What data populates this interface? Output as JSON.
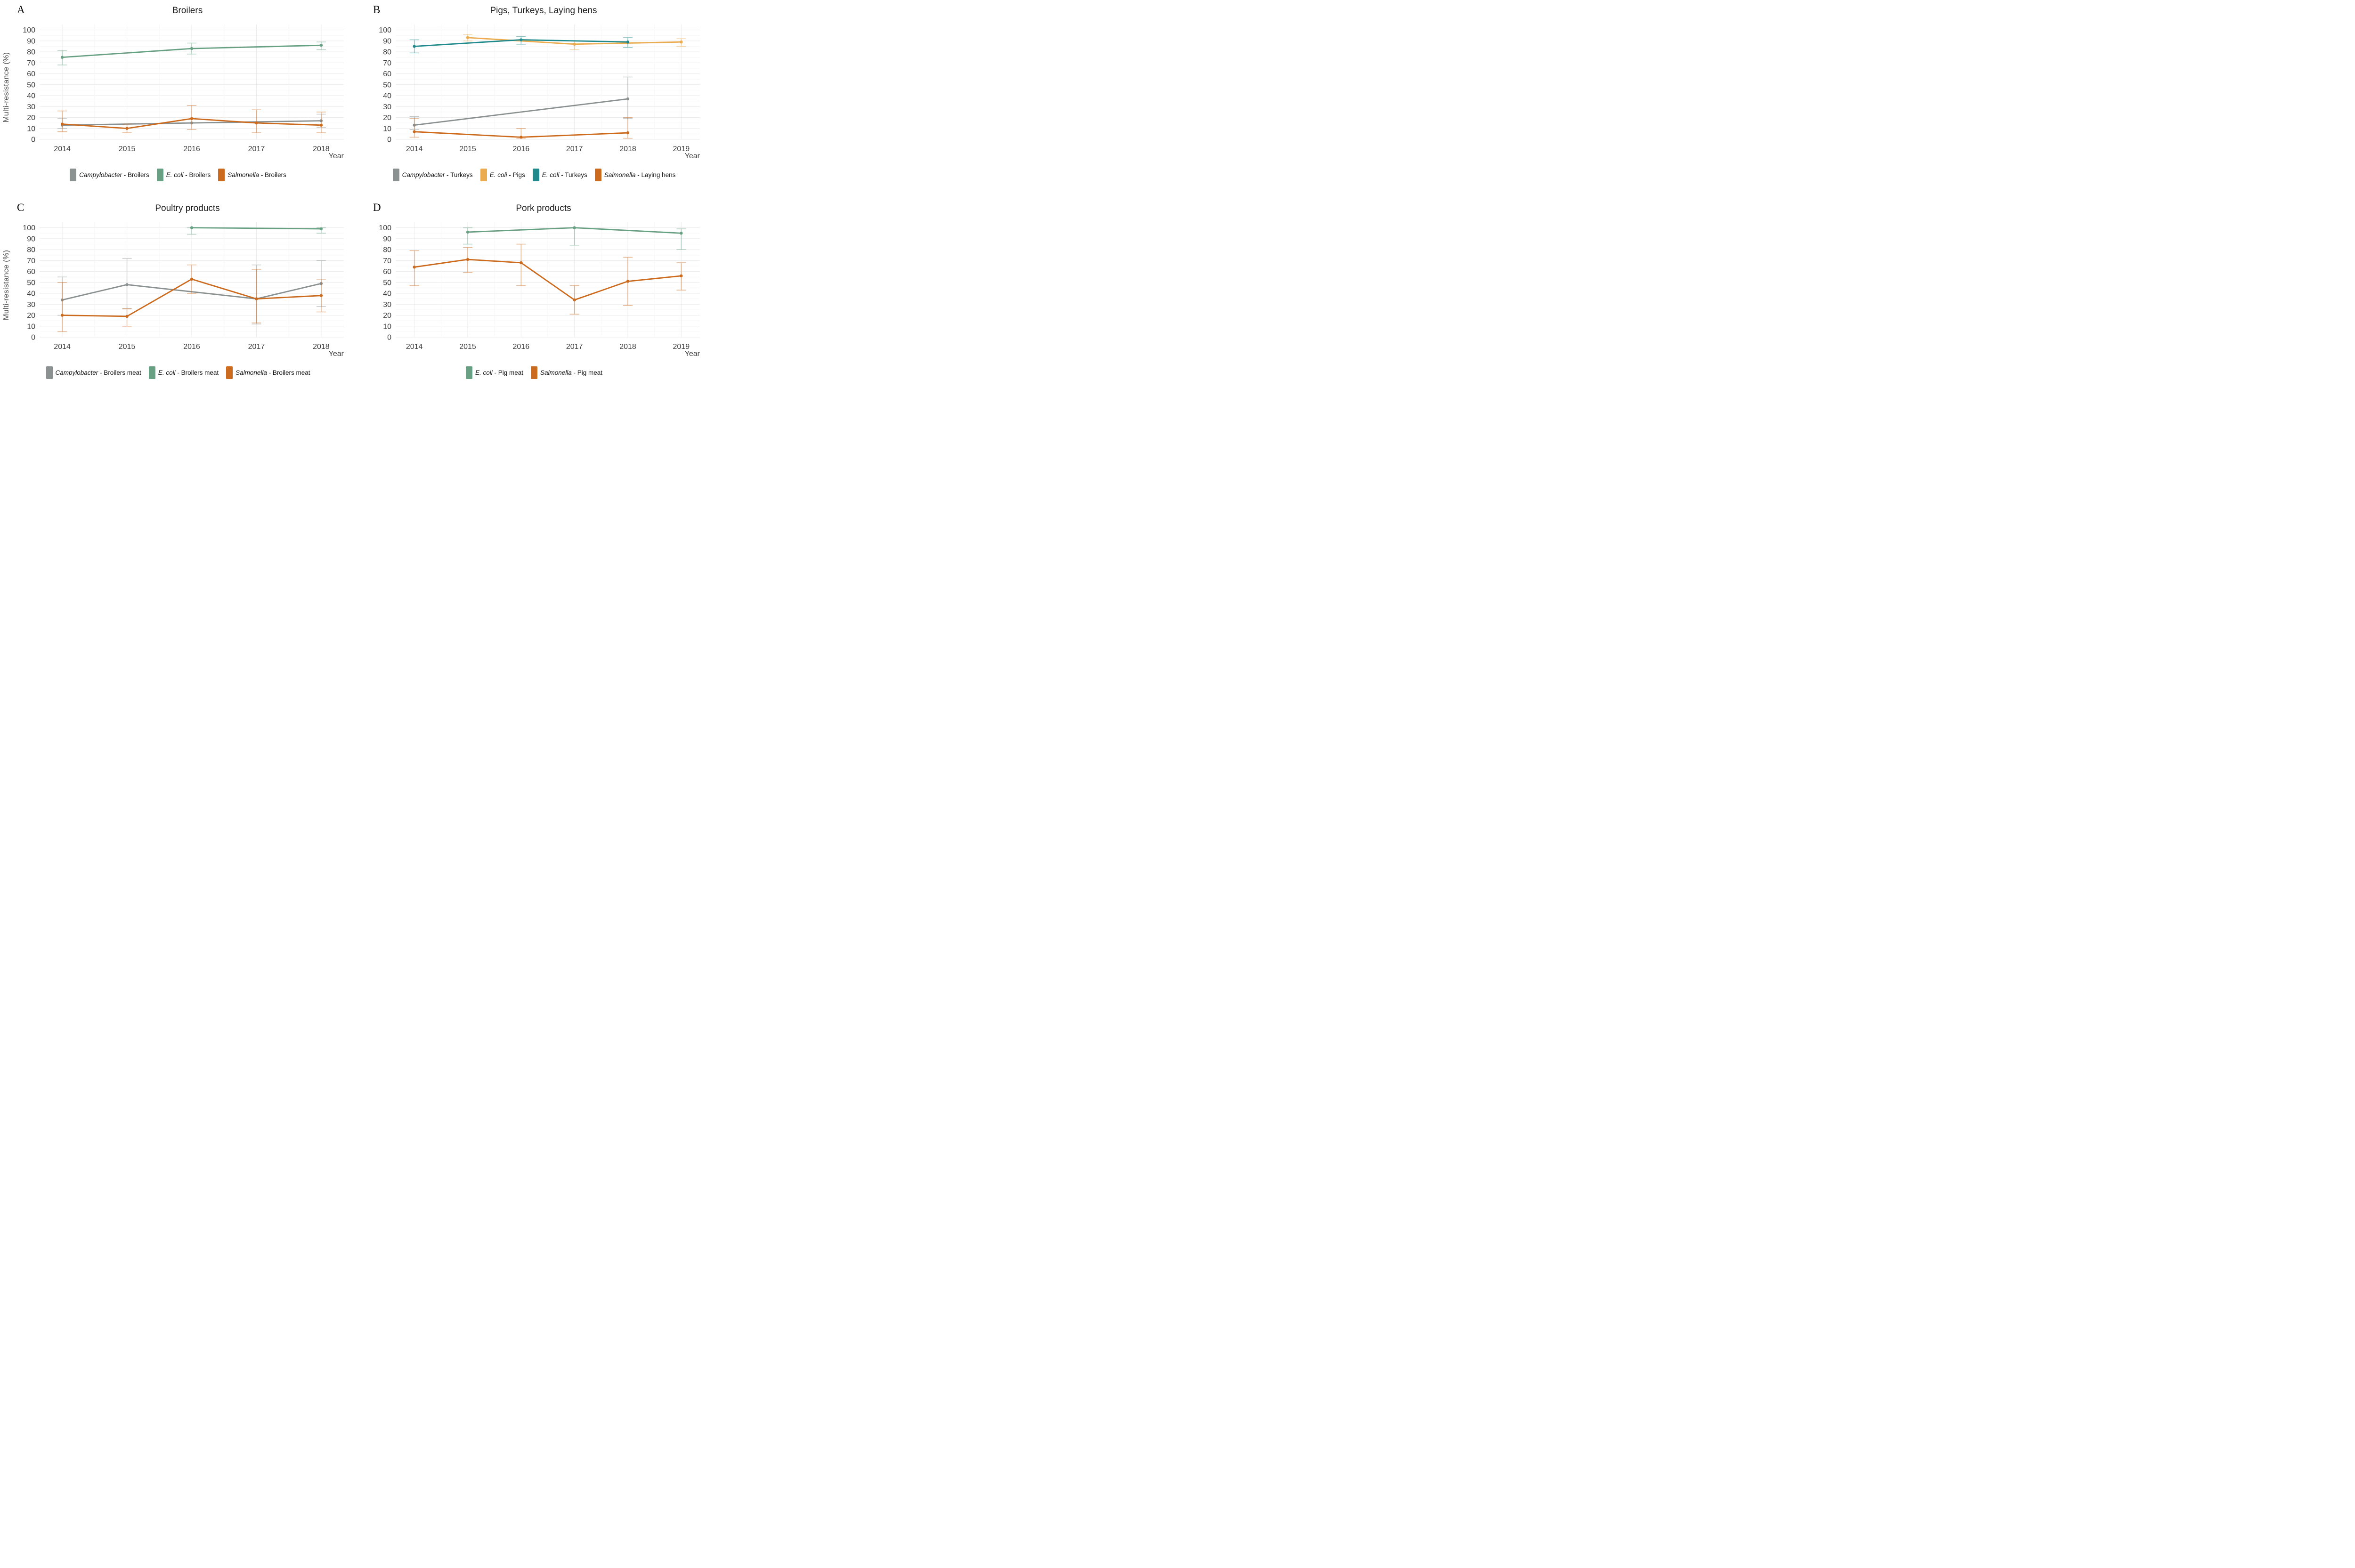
{
  "figure": {
    "y_axis_title": "Multi-resistance (%)",
    "x_axis_title": "Year"
  },
  "chart_data": [
    {
      "panel": "A",
      "type": "line",
      "title": "Broilers",
      "xlabel": "Year",
      "ylabel": "Multi-resistance (%)",
      "ylim": [
        0,
        105
      ],
      "y_ticks": [
        0,
        10,
        20,
        30,
        40,
        50,
        60,
        70,
        80,
        90,
        100
      ],
      "x_ticks": [
        2014,
        2015,
        2016,
        2017,
        2018
      ],
      "grid": true,
      "legend_position": "bottom",
      "series": [
        {
          "genus": "Campylobacter",
          "rest": " - Broilers",
          "label": "Campylobacter - Broilers",
          "color": "#8A9190",
          "points": [
            {
              "x": 2014,
              "y": 13,
              "lo": 10,
              "hi": 19
            },
            {
              "x": 2016,
              "y": 15,
              "lo": null,
              "hi": null
            },
            {
              "x": 2018,
              "y": 17,
              "lo": 11,
              "hi": 23
            }
          ]
        },
        {
          "genus": "E. coli",
          "rest": " - Broilers",
          "label": "E. coli - Broilers",
          "color": "#67A083",
          "points": [
            {
              "x": 2014,
              "y": 75,
              "lo": 68,
              "hi": 81
            },
            {
              "x": 2016,
              "y": 83,
              "lo": 78,
              "hi": 88
            },
            {
              "x": 2018,
              "y": 86,
              "lo": 82,
              "hi": 89
            }
          ]
        },
        {
          "genus": "Salmonella",
          "rest": " - Broilers",
          "label": "Salmonella - Broilers",
          "color": "#CC6A1E",
          "points": [
            {
              "x": 2014,
              "y": 14,
              "lo": 7,
              "hi": 26
            },
            {
              "x": 2015,
              "y": 10,
              "lo": 6,
              "hi": 14
            },
            {
              "x": 2016,
              "y": 19,
              "lo": 9,
              "hi": 31
            },
            {
              "x": 2017,
              "y": 15,
              "lo": 6,
              "hi": 27
            },
            {
              "x": 2018,
              "y": 13,
              "lo": 6,
              "hi": 25
            }
          ]
        }
      ]
    },
    {
      "panel": "B",
      "type": "line",
      "title": "Pigs, Turkeys, Laying hens",
      "xlabel": "Year",
      "ylabel": "",
      "ylim": [
        0,
        105
      ],
      "y_ticks": [
        0,
        10,
        20,
        30,
        40,
        50,
        60,
        70,
        80,
        90,
        100
      ],
      "x_ticks": [
        2014,
        2015,
        2016,
        2017,
        2018,
        2019
      ],
      "grid": true,
      "legend_position": "bottom",
      "series": [
        {
          "genus": "Campylobacter",
          "rest": " - Turkeys",
          "label": "Campylobacter - Turkeys",
          "color": "#8A9190",
          "points": [
            {
              "x": 2014,
              "y": 13,
              "lo": 9,
              "hi": 21
            },
            {
              "x": 2018,
              "y": 37,
              "lo": 19,
              "hi": 57
            }
          ]
        },
        {
          "genus": "E. coli",
          "rest": " - Pigs",
          "label": "E. coli - Pigs",
          "color": "#EBAC4F",
          "points": [
            {
              "x": 2015,
              "y": 93,
              "lo": 90,
              "hi": 96
            },
            {
              "x": 2017,
              "y": 87,
              "lo": 82,
              "hi": 90
            },
            {
              "x": 2019,
              "y": 89,
              "lo": 85,
              "hi": 92
            }
          ]
        },
        {
          "genus": "E. coli",
          "rest": " - Turkeys",
          "label": "E. coli - Turkeys",
          "color": "#20898C",
          "points": [
            {
              "x": 2014,
              "y": 85,
              "lo": 79,
              "hi": 91
            },
            {
              "x": 2016,
              "y": 91,
              "lo": 87,
              "hi": 94
            },
            {
              "x": 2018,
              "y": 89,
              "lo": 84,
              "hi": 93
            }
          ]
        },
        {
          "genus": "Salmonella",
          "rest": " - Laying hens",
          "label": "Salmonella - Laying hens",
          "color": "#CC6A1E",
          "points": [
            {
              "x": 2014,
              "y": 7,
              "lo": 2,
              "hi": 19
            },
            {
              "x": 2016,
              "y": 2,
              "lo": 1,
              "hi": 10
            },
            {
              "x": 2018,
              "y": 6,
              "lo": 1,
              "hi": 20
            }
          ]
        }
      ]
    },
    {
      "panel": "C",
      "type": "line",
      "title": "Poultry products",
      "xlabel": "Year",
      "ylabel": "Multi-resistance (%)",
      "ylim": [
        0,
        105
      ],
      "y_ticks": [
        0,
        10,
        20,
        30,
        40,
        50,
        60,
        70,
        80,
        90,
        100
      ],
      "x_ticks": [
        2014,
        2015,
        2016,
        2017,
        2018
      ],
      "grid": true,
      "legend_position": "bottom",
      "series": [
        {
          "genus": "Campylobacter",
          "rest": " - Broilers meat",
          "label": "Campylobacter - Broilers meat",
          "color": "#8A9190",
          "points": [
            {
              "x": 2014,
              "y": 34,
              "lo": 20,
              "hi": 55
            },
            {
              "x": 2015,
              "y": 48,
              "lo": 26,
              "hi": 72
            },
            {
              "x": 2017,
              "y": 35,
              "lo": 12,
              "hi": 66
            },
            {
              "x": 2018,
              "y": 49,
              "lo": 28,
              "hi": 70
            }
          ]
        },
        {
          "genus": "E. coli",
          "rest": " - Broilers meat",
          "label": "E. coli - Broilers meat",
          "color": "#67A083",
          "points": [
            {
              "x": 2016,
              "y": 100,
              "lo": 94,
              "hi": 100
            },
            {
              "x": 2018,
              "y": 99,
              "lo": 95,
              "hi": 100
            }
          ]
        },
        {
          "genus": "Salmonella",
          "rest": " - Broilers meat",
          "label": "Salmonella - Broilers meat",
          "color": "#CC6A1E",
          "points": [
            {
              "x": 2014,
              "y": 20,
              "lo": 5,
              "hi": 50
            },
            {
              "x": 2015,
              "y": 19,
              "lo": 10,
              "hi": 26
            },
            {
              "x": 2016,
              "y": 53,
              "lo": 40,
              "hi": 66
            },
            {
              "x": 2017,
              "y": 35,
              "lo": 13,
              "hi": 62
            },
            {
              "x": 2018,
              "y": 38,
              "lo": 23,
              "hi": 53
            }
          ]
        }
      ]
    },
    {
      "panel": "D",
      "type": "line",
      "title": "Pork products",
      "xlabel": "Year",
      "ylabel": "",
      "ylim": [
        0,
        105
      ],
      "y_ticks": [
        0,
        10,
        20,
        30,
        40,
        50,
        60,
        70,
        80,
        90,
        100
      ],
      "x_ticks": [
        2014,
        2015,
        2016,
        2017,
        2018,
        2019
      ],
      "grid": true,
      "legend_position": "bottom",
      "series": [
        {
          "genus": "E. coli",
          "rest": " - Pig meat",
          "label": "E. coli - Pig meat",
          "color": "#67A083",
          "points": [
            {
              "x": 2015,
              "y": 96,
              "lo": 85,
              "hi": 100
            },
            {
              "x": 2017,
              "y": 100,
              "lo": 84,
              "hi": 100
            },
            {
              "x": 2019,
              "y": 95,
              "lo": 80,
              "hi": 99
            }
          ]
        },
        {
          "genus": "Salmonella",
          "rest": " - Pig meat",
          "label": "Salmonella - Pig meat",
          "color": "#CC6A1E",
          "points": [
            {
              "x": 2014,
              "y": 64,
              "lo": 47,
              "hi": 79
            },
            {
              "x": 2015,
              "y": 71,
              "lo": 59,
              "hi": 82
            },
            {
              "x": 2016,
              "y": 68,
              "lo": 47,
              "hi": 85
            },
            {
              "x": 2017,
              "y": 34,
              "lo": 21,
              "hi": 47
            },
            {
              "x": 2018,
              "y": 51,
              "lo": 29,
              "hi": 73
            },
            {
              "x": 2019,
              "y": 56,
              "lo": 43,
              "hi": 68
            }
          ]
        }
      ]
    }
  ]
}
